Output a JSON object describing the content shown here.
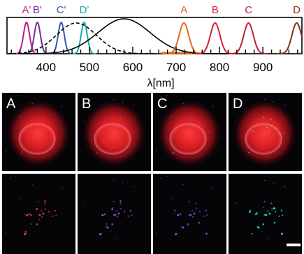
{
  "chart_data": {
    "type": "line",
    "xlabel": "λ[nm]",
    "xlim": [
      310,
      990
    ],
    "ylim": [
      0,
      1
    ],
    "x_ticks": [
      400,
      500,
      600,
      700,
      800,
      900
    ],
    "x_minor_step": 20,
    "grid": false,
    "series": [
      {
        "name": "A'",
        "color": "#c0178a",
        "style": "peak",
        "center": 355,
        "width": 7,
        "height": 0.9
      },
      {
        "name": "B'",
        "color": "#7a2a9a",
        "style": "peak",
        "center": 380,
        "width": 7,
        "height": 0.9
      },
      {
        "name": "C'",
        "color": "#3a55b0",
        "style": "peak",
        "center": 435,
        "width": 7,
        "height": 0.9
      },
      {
        "name": "D'",
        "color": "#1aa8a8",
        "style": "peak",
        "center": 488,
        "width": 7,
        "height": 0.9
      },
      {
        "name": "",
        "color": "#000000",
        "style": "dashed",
        "center": 470,
        "width": 46,
        "height": 0.88
      },
      {
        "name": "",
        "color": "#000000",
        "style": "solid",
        "center": 580,
        "width": 60,
        "height": 1.0
      },
      {
        "name": "A",
        "color": "#e06a1a",
        "style": "peak",
        "center": 718,
        "width": 11,
        "height": 0.88
      },
      {
        "name": "B",
        "color": "#d61f3c",
        "style": "peak",
        "center": 790,
        "width": 11,
        "height": 0.88
      },
      {
        "name": "C",
        "color": "#c0203a",
        "style": "peak",
        "center": 867,
        "width": 11,
        "height": 0.88
      },
      {
        "name": "D",
        "color": "#8a2a1a",
        "style": "peak",
        "center": 978,
        "width": 11,
        "height": 0.88
      }
    ],
    "bands": [
      {
        "color": "#e06a1a",
        "from": 666,
        "to": 745
      }
    ]
  },
  "panels": {
    "labels": [
      "A",
      "B",
      "C",
      "D"
    ],
    "dot_colors": [
      "#ff2a6a",
      "#a050e0",
      "#6060ff",
      "#30e0e0"
    ]
  }
}
